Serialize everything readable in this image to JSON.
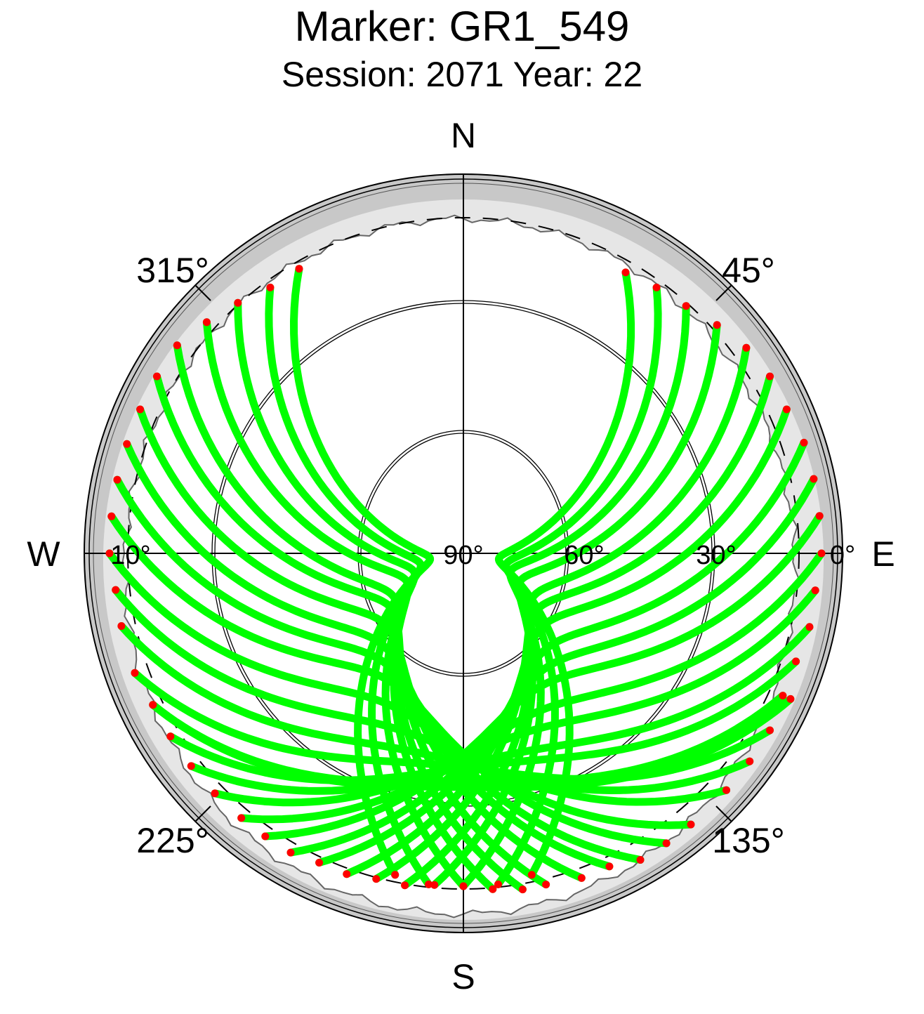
{
  "title": "Marker: GR1_549",
  "subtitle": "Session: 2071 Year: 22",
  "compass": {
    "north": "N",
    "south": "S",
    "west": "W",
    "east": "E"
  },
  "azimuth_labels": {
    "a315": "315°",
    "a45": "45°",
    "a225": "225°",
    "a135": "135°"
  },
  "elevation_labels": {
    "e90": "90°",
    "e60": "60°",
    "e30": "30°",
    "e10": "10°",
    "e0": "0°"
  },
  "colors": {
    "track": "#00ff00",
    "track_end": "#ff0000",
    "mask_outer": "#c8c8c8",
    "mask_inner": "#e6e6e6",
    "grid": "#000000"
  },
  "chart_data": {
    "type": "scatter",
    "projection": "polar sky plot (azimuth clockwise from north, elevation 90° at centre to 0° at rim)",
    "title": "Marker: GR1_549",
    "subtitle": "Session: 2071 Year: 22",
    "elevation_rings": [
      90,
      60,
      30,
      10,
      0
    ],
    "azimuth_ticks": [
      0,
      45,
      90,
      135,
      180,
      225,
      270,
      315
    ],
    "cutoff_elevation": 10,
    "series": [
      {
        "az_start": 330,
        "el_start": 12,
        "az_end": 192,
        "el_end": 12,
        "max_el": 82
      },
      {
        "az_start": 324,
        "el_start": 12,
        "az_end": 186,
        "el_end": 11,
        "max_el": 80
      },
      {
        "az_start": 318,
        "el_start": 10,
        "az_end": 180,
        "el_end": 11,
        "max_el": 78
      },
      {
        "az_start": 312,
        "el_start": 8,
        "az_end": 175,
        "el_end": 10,
        "max_el": 76
      },
      {
        "az_start": 306,
        "el_start": 6,
        "az_end": 170,
        "el_end": 9,
        "max_el": 72
      },
      {
        "az_start": 300,
        "el_start": 6,
        "az_end": 166,
        "el_end": 9,
        "max_el": 70
      },
      {
        "az_start": 294,
        "el_start": 6,
        "az_end": 160,
        "el_end": 8,
        "max_el": 66
      },
      {
        "az_start": 288,
        "el_start": 6,
        "az_end": 155,
        "el_end": 8,
        "max_el": 62
      },
      {
        "az_start": 282,
        "el_start": 6,
        "az_end": 150,
        "el_end": 6,
        "max_el": 58
      },
      {
        "az_start": 276,
        "el_start": 6,
        "az_end": 145,
        "el_end": 6,
        "max_el": 55
      },
      {
        "az_start": 270,
        "el_start": 6,
        "az_end": 140,
        "el_end": 6,
        "max_el": 50
      },
      {
        "az_start": 264,
        "el_start": 7,
        "az_end": 132,
        "el_end": 6,
        "max_el": 46
      },
      {
        "az_start": 258,
        "el_start": 7,
        "az_end": 126,
        "el_end": 6,
        "max_el": 42
      },
      {
        "az_start": 250,
        "el_start": 7,
        "az_end": 120,
        "el_end": 6,
        "max_el": 40
      },
      {
        "az_start": 244,
        "el_start": 8,
        "az_end": 114,
        "el_end": 5,
        "max_el": 36
      },
      {
        "az_start": 30,
        "el_start": 13,
        "az_end": 168,
        "el_end": 12,
        "max_el": 82
      },
      {
        "az_start": 36,
        "el_start": 12,
        "az_end": 174,
        "el_end": 11,
        "max_el": 80
      },
      {
        "az_start": 42,
        "el_start": 11,
        "az_end": 180,
        "el_end": 11,
        "max_el": 78
      },
      {
        "az_start": 48,
        "el_start": 9,
        "az_end": 185,
        "el_end": 11,
        "max_el": 76
      },
      {
        "az_start": 54,
        "el_start": 7,
        "az_end": 190,
        "el_end": 10,
        "max_el": 72
      },
      {
        "az_start": 60,
        "el_start": 6,
        "az_end": 195,
        "el_end": 10,
        "max_el": 70
      },
      {
        "az_start": 66,
        "el_start": 6,
        "az_end": 200,
        "el_end": 9,
        "max_el": 66
      },
      {
        "az_start": 72,
        "el_start": 5,
        "az_end": 205,
        "el_end": 9,
        "max_el": 62
      },
      {
        "az_start": 78,
        "el_start": 5,
        "az_end": 210,
        "el_end": 8,
        "max_el": 58
      },
      {
        "az_start": 84,
        "el_start": 5,
        "az_end": 215,
        "el_end": 8,
        "max_el": 55
      },
      {
        "az_start": 90,
        "el_start": 5,
        "az_end": 220,
        "el_end": 8,
        "max_el": 50
      },
      {
        "az_start": 96,
        "el_start": 6,
        "az_end": 226,
        "el_end": 8,
        "max_el": 46
      },
      {
        "az_start": 102,
        "el_start": 6,
        "az_end": 232,
        "el_end": 8,
        "max_el": 42
      },
      {
        "az_start": 108,
        "el_start": 7,
        "az_end": 238,
        "el_end": 8,
        "max_el": 40
      },
      {
        "az_start": 114,
        "el_start": 7,
        "az_end": 244,
        "el_end": 8,
        "max_el": 36
      }
    ]
  }
}
